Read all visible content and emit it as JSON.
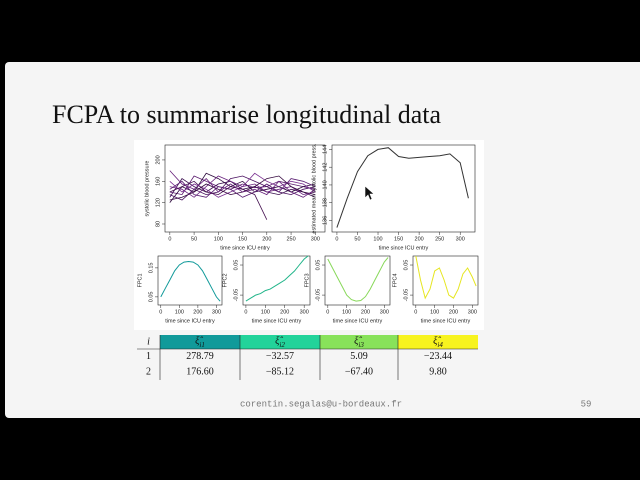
{
  "slide": {
    "title": "FCPA to summarise longitudinal data",
    "footer": "corentin.segalas@u-bordeaux.fr",
    "page_number": "59"
  },
  "chart_data": [
    {
      "type": "line",
      "ylabel": "systolic blood pressure",
      "xlabel": "time since ICU entry",
      "xlim": [
        -10,
        320
      ],
      "ylim": [
        65,
        228
      ],
      "xticks": [
        0,
        50,
        100,
        150,
        200,
        250,
        300
      ],
      "yticks": [
        80,
        120,
        160,
        200
      ],
      "x": [
        0,
        25,
        50,
        75,
        100,
        125,
        150,
        175,
        200,
        225,
        250,
        275,
        300
      ],
      "series": [
        {
          "color": "#3b0f4f",
          "values": [
            130,
            165,
            150,
            140,
            155,
            160,
            145,
            150,
            140,
            135,
            145,
            140,
            130
          ]
        },
        {
          "color": "#5a1a6e",
          "values": [
            140,
            135,
            170,
            160,
            150,
            145,
            155,
            148,
            150,
            160,
            155,
            150,
            145
          ]
        },
        {
          "color": "#2d0a3d",
          "values": [
            120,
            150,
            140,
            175,
            165,
            150,
            160,
            140,
            145,
            150,
            140,
            150,
            155
          ]
        },
        {
          "color": "#6b2580",
          "values": [
            150,
            145,
            130,
            150,
            170,
            160,
            150,
            155,
            140,
            145,
            150,
            135,
            140
          ]
        },
        {
          "color": "#4a1160",
          "values": [
            135,
            125,
            145,
            135,
            140,
            165,
            170,
            160,
            150,
            140,
            135,
            145,
            150
          ]
        },
        {
          "color": "#7a3090",
          "values": [
            160,
            140,
            155,
            145,
            130,
            140,
            150,
            175,
            160,
            150,
            160,
            155,
            140
          ]
        },
        {
          "color": "#35083f",
          "values": [
            125,
            130,
            140,
            155,
            145,
            135,
            140,
            150,
            165,
            170,
            150,
            140,
            135
          ]
        },
        {
          "color": "#581c70",
          "values": [
            145,
            160,
            135,
            130,
            150,
            145,
            130,
            140,
            155,
            140,
            165,
            160,
            150
          ]
        },
        {
          "color": "#44104f",
          "values": [
            140,
            150,
            160,
            140,
            135,
            150,
            145,
            135,
            88,
            null,
            null,
            null,
            null
          ]
        },
        {
          "color": "#66207a",
          "values": [
            180,
            155,
            145,
            165,
            140,
            155,
            140,
            145,
            135,
            160,
            140,
            130,
            145
          ]
        }
      ]
    },
    {
      "type": "line",
      "ylabel": "estimated mean systolic blood press.",
      "xlabel": "time since ICU entry",
      "xlim": [
        -12,
        336
      ],
      "ylim": [
        134.7,
        144.5
      ],
      "xticks": [
        0,
        50,
        100,
        150,
        200,
        250,
        300
      ],
      "yticks": [
        136,
        138,
        140,
        142,
        144
      ],
      "x": [
        0,
        25,
        50,
        75,
        100,
        125,
        150,
        175,
        200,
        225,
        250,
        275,
        300,
        320
      ],
      "series": [
        {
          "color": "#333333",
          "values": [
            135.2,
            138.5,
            141.5,
            143.3,
            144.0,
            144.2,
            143.2,
            143.0,
            143.1,
            143.2,
            143.3,
            143.5,
            142.5,
            138.5
          ]
        }
      ]
    },
    {
      "type": "line",
      "ylabel": "FPC1",
      "xlabel": "time since ICU entry",
      "xlim": [
        -15,
        330
      ],
      "ylim": [
        0.022,
        0.191
      ],
      "xticks": [
        0,
        100,
        200,
        300
      ],
      "yticks": [
        0.05,
        0.15
      ],
      "x": [
        0,
        25,
        50,
        75,
        100,
        125,
        150,
        175,
        200,
        225,
        250,
        275,
        300,
        320
      ],
      "series": [
        {
          "color": "#119a9a",
          "values": [
            0.05,
            0.08,
            0.11,
            0.14,
            0.16,
            0.17,
            0.172,
            0.17,
            0.16,
            0.14,
            0.11,
            0.08,
            0.05,
            0.035
          ]
        }
      ]
    },
    {
      "type": "line",
      "ylabel": "FPC2",
      "xlabel": "time since ICU entry",
      "xlim": [
        -15,
        330
      ],
      "ylim": [
        -0.083,
        0.08
      ],
      "xticks": [
        0,
        100,
        200,
        300
      ],
      "yticks": [
        -0.05,
        0.05
      ],
      "x": [
        0,
        25,
        50,
        75,
        100,
        125,
        150,
        175,
        200,
        225,
        250,
        275,
        300,
        320
      ],
      "series": [
        {
          "color": "#22b58a",
          "values": [
            -0.07,
            -0.06,
            -0.05,
            -0.045,
            -0.035,
            -0.03,
            -0.02,
            -0.01,
            0.0,
            0.015,
            0.03,
            0.05,
            0.07,
            0.08
          ]
        }
      ]
    },
    {
      "type": "line",
      "ylabel": "FPC3",
      "xlabel": "time since ICU entry",
      "xlim": [
        -15,
        330
      ],
      "ylim": [
        -0.083,
        0.08
      ],
      "xticks": [
        0,
        100,
        200,
        300
      ],
      "yticks": [
        -0.05,
        0.05
      ],
      "x": [
        0,
        25,
        50,
        75,
        100,
        125,
        150,
        175,
        200,
        225,
        250,
        275,
        300,
        320
      ],
      "series": [
        {
          "color": "#88d85a",
          "values": [
            0.07,
            0.04,
            0.01,
            -0.02,
            -0.05,
            -0.065,
            -0.07,
            -0.068,
            -0.055,
            -0.03,
            0.0,
            0.03,
            0.06,
            0.075
          ]
        }
      ]
    },
    {
      "type": "line",
      "ylabel": "FPC4",
      "xlabel": "time since ICU entry",
      "xlim": [
        -15,
        330
      ],
      "ylim": [
        -0.083,
        0.08
      ],
      "xticks": [
        0,
        100,
        200,
        300
      ],
      "yticks": [
        -0.05,
        0.05
      ],
      "x": [
        0,
        25,
        50,
        75,
        100,
        125,
        150,
        175,
        200,
        225,
        250,
        275,
        300,
        320
      ],
      "series": [
        {
          "color": "#e6e620",
          "values": [
            0.08,
            0.0,
            -0.06,
            -0.03,
            0.03,
            0.04,
            0.0,
            -0.05,
            -0.06,
            -0.03,
            0.02,
            0.04,
            0.01,
            -0.02
          ]
        }
      ]
    }
  ],
  "table": {
    "header": {
      "index": "i",
      "columns": [
        {
          "symbol": "ξ̂",
          "subscript": "i1",
          "color": "#119a9a"
        },
        {
          "symbol": "ξ̂",
          "subscript": "i2",
          "color": "#22d39a"
        },
        {
          "symbol": "ξ̂",
          "subscript": "i3",
          "color": "#88e25a"
        },
        {
          "symbol": "ξ̂",
          "subscript": "i4",
          "color": "#f7f31e"
        }
      ]
    },
    "rows": [
      [
        "1",
        "278.79",
        "−32.57",
        "5.09",
        "−23.44"
      ],
      [
        "2",
        "176.60",
        "−85.12",
        "−67.40",
        "9.80"
      ]
    ]
  }
}
